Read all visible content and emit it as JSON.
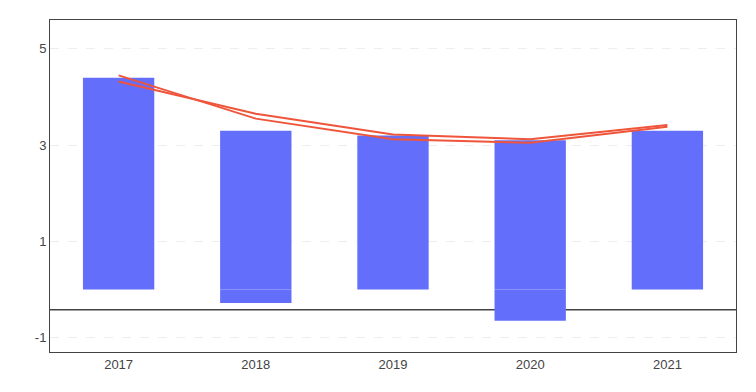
{
  "chart_data": {
    "type": "bar",
    "categories": [
      "2017",
      "2018",
      "2019",
      "2020",
      "2021"
    ],
    "series": [
      {
        "type": "bar",
        "color": "#636efa",
        "values": [
          4.4,
          3.3,
          3.2,
          3.1,
          3.3
        ]
      },
      {
        "type": "bar",
        "color": "#636efa",
        "values": [
          0.0,
          -0.28,
          0.0,
          -0.65,
          0.0
        ]
      },
      {
        "type": "line",
        "color": "#ef553b",
        "line_style": "solid",
        "values": [
          4.45,
          3.55,
          3.12,
          3.05,
          3.38
        ]
      },
      {
        "type": "line",
        "color": "#ef553b",
        "line_style": "solid",
        "values": [
          4.32,
          3.65,
          3.22,
          3.12,
          3.42
        ]
      }
    ],
    "reference_line": {
      "y": -0.42,
      "color": "#444444"
    },
    "ylim": [
      -1.3,
      5.6
    ],
    "yticks": [
      -1,
      1,
      3,
      5
    ],
    "grid": true
  }
}
